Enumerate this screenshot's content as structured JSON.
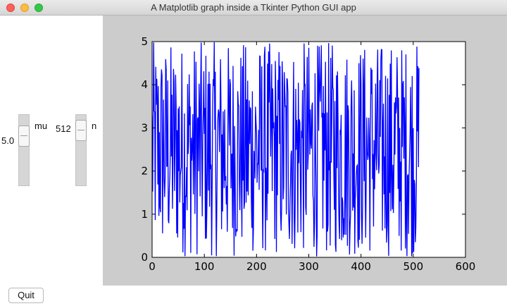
{
  "window": {
    "title": "A Matplotlib graph inside a Tkinter Python GUI app"
  },
  "controls": {
    "mu": {
      "label": "mu",
      "value": "5.0",
      "level": 0.22
    },
    "n": {
      "label": "n",
      "value": "512",
      "level": 0.1
    }
  },
  "quit_button": {
    "label": "Quit"
  },
  "chart_data": {
    "type": "line",
    "xlim": [
      0,
      600
    ],
    "ylim": [
      0,
      5
    ],
    "xticks": [
      "0",
      "100",
      "200",
      "300",
      "400",
      "500",
      "600"
    ],
    "yticks": [
      "0",
      "1",
      "2",
      "3",
      "4",
      "5"
    ],
    "grid": false,
    "series": [
      {
        "color": "#0000ff",
        "n_points": 512,
        "value_range": [
          0,
          5
        ]
      }
    ]
  }
}
